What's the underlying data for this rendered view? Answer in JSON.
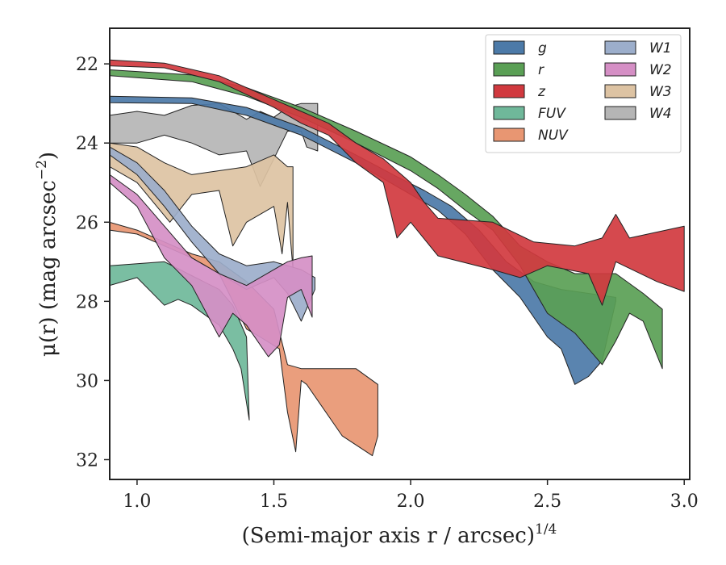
{
  "chart_data": {
    "type": "area",
    "xlabel": "(Semi-major axis r / arcsec)",
    "xlabel_sup": "1/4",
    "ylabel": "μ(r) (mag arcsec",
    "ylabel_sup": "−2",
    "ylabel_end": ")",
    "xlim": [
      0.9,
      3.02
    ],
    "ylim": [
      32.5,
      21.1
    ],
    "y_inverted": true,
    "x_ticks": [
      1.0,
      1.5,
      2.0,
      2.5,
      3.0
    ],
    "x_tick_labels": [
      "1.0",
      "1.5",
      "2.0",
      "2.5",
      "3.0"
    ],
    "y_ticks": [
      22,
      24,
      26,
      28,
      30,
      32
    ],
    "y_tick_labels": [
      "22",
      "24",
      "26",
      "28",
      "30",
      "32"
    ],
    "grid": false,
    "legend_position": "top-right",
    "legend_columns": 2,
    "series": [
      {
        "name": "g",
        "color": "#4c7aa8",
        "upper": [
          [
            0.9,
            22.82
          ],
          [
            1.2,
            22.86
          ],
          [
            1.4,
            23.1
          ],
          [
            1.6,
            23.6
          ],
          [
            1.8,
            24.3
          ],
          [
            1.95,
            24.85
          ],
          [
            2.05,
            25.2
          ],
          [
            2.15,
            25.6
          ],
          [
            2.25,
            26.2
          ],
          [
            2.35,
            27.0
          ],
          [
            2.45,
            27.5
          ],
          [
            2.55,
            27.7
          ],
          [
            2.65,
            27.8
          ],
          [
            2.75,
            27.9
          ]
        ],
        "lower": [
          [
            2.75,
            28.0
          ],
          [
            2.7,
            29.5
          ],
          [
            2.65,
            29.9
          ],
          [
            2.6,
            30.1
          ],
          [
            2.55,
            29.2
          ],
          [
            2.5,
            28.9
          ],
          [
            2.4,
            27.9
          ],
          [
            2.3,
            27.2
          ],
          [
            2.2,
            26.3
          ],
          [
            2.1,
            25.7
          ],
          [
            2.0,
            25.3
          ],
          [
            1.8,
            24.5
          ],
          [
            1.6,
            23.8
          ],
          [
            1.4,
            23.3
          ],
          [
            1.2,
            23.0
          ],
          [
            0.9,
            22.98
          ]
        ]
      },
      {
        "name": "r",
        "color": "#5a9f55",
        "upper": [
          [
            0.9,
            22.15
          ],
          [
            1.2,
            22.28
          ],
          [
            1.4,
            22.6
          ],
          [
            1.6,
            23.1
          ],
          [
            1.8,
            23.7
          ],
          [
            2.0,
            24.35
          ],
          [
            2.1,
            24.8
          ],
          [
            2.2,
            25.3
          ],
          [
            2.3,
            25.85
          ],
          [
            2.4,
            26.6
          ],
          [
            2.5,
            27.0
          ],
          [
            2.6,
            27.3
          ],
          [
            2.75,
            27.3
          ],
          [
            2.85,
            27.8
          ],
          [
            2.92,
            28.2
          ]
        ],
        "lower": [
          [
            2.92,
            29.7
          ],
          [
            2.85,
            28.5
          ],
          [
            2.8,
            28.3
          ],
          [
            2.75,
            29.0
          ],
          [
            2.7,
            29.6
          ],
          [
            2.6,
            28.8
          ],
          [
            2.5,
            28.3
          ],
          [
            2.4,
            27.1
          ],
          [
            2.3,
            26.2
          ],
          [
            2.2,
            25.7
          ],
          [
            2.1,
            25.15
          ],
          [
            2.0,
            24.7
          ],
          [
            1.8,
            24.0
          ],
          [
            1.6,
            23.35
          ],
          [
            1.4,
            22.82
          ],
          [
            1.2,
            22.45
          ],
          [
            0.9,
            22.3
          ]
        ]
      },
      {
        "name": "z",
        "color": "#d1393f",
        "upper": [
          [
            0.9,
            21.9
          ],
          [
            1.1,
            21.98
          ],
          [
            1.3,
            22.3
          ],
          [
            1.5,
            22.9
          ],
          [
            1.6,
            23.2
          ],
          [
            1.7,
            23.5
          ],
          [
            1.8,
            24.0
          ],
          [
            1.9,
            24.4
          ],
          [
            2.0,
            25.0
          ],
          [
            2.05,
            25.5
          ],
          [
            2.1,
            25.9
          ],
          [
            2.3,
            26.0
          ],
          [
            2.45,
            26.5
          ],
          [
            2.6,
            26.6
          ],
          [
            2.7,
            26.4
          ],
          [
            2.75,
            25.8
          ],
          [
            2.8,
            26.4
          ],
          [
            3.0,
            26.1
          ]
        ],
        "lower": [
          [
            3.0,
            27.75
          ],
          [
            2.9,
            27.5
          ],
          [
            2.75,
            27.0
          ],
          [
            2.7,
            28.1
          ],
          [
            2.65,
            27.3
          ],
          [
            2.5,
            27.1
          ],
          [
            2.4,
            27.4
          ],
          [
            2.3,
            27.2
          ],
          [
            2.1,
            26.85
          ],
          [
            2.0,
            26.0
          ],
          [
            1.95,
            26.4
          ],
          [
            1.9,
            25.0
          ],
          [
            1.8,
            24.5
          ],
          [
            1.7,
            23.8
          ],
          [
            1.6,
            23.5
          ],
          [
            1.5,
            23.1
          ],
          [
            1.3,
            22.45
          ],
          [
            1.1,
            22.1
          ],
          [
            0.9,
            22.05
          ]
        ]
      },
      {
        "name": "FUV",
        "color": "#6fb89a",
        "upper": [
          [
            0.9,
            27.1
          ],
          [
            1.0,
            27.05
          ],
          [
            1.1,
            27.0
          ],
          [
            1.2,
            27.35
          ],
          [
            1.3,
            27.7
          ],
          [
            1.35,
            28.1
          ],
          [
            1.4,
            28.9
          ]
        ],
        "lower": [
          [
            1.41,
            31.0
          ],
          [
            1.38,
            29.7
          ],
          [
            1.35,
            29.2
          ],
          [
            1.3,
            28.6
          ],
          [
            1.2,
            28.1
          ],
          [
            1.15,
            27.95
          ],
          [
            1.1,
            28.1
          ],
          [
            1.0,
            27.4
          ],
          [
            0.9,
            27.6
          ]
        ]
      },
      {
        "name": "NUV",
        "color": "#e89672",
        "upper": [
          [
            0.9,
            26.0
          ],
          [
            1.0,
            26.2
          ],
          [
            1.1,
            26.5
          ],
          [
            1.2,
            26.8
          ],
          [
            1.3,
            27.0
          ],
          [
            1.4,
            27.5
          ],
          [
            1.5,
            28.2
          ],
          [
            1.55,
            29.6
          ],
          [
            1.6,
            29.7
          ],
          [
            1.8,
            29.7
          ],
          [
            1.88,
            30.1
          ]
        ],
        "lower": [
          [
            1.88,
            31.4
          ],
          [
            1.86,
            31.9
          ],
          [
            1.75,
            31.4
          ],
          [
            1.62,
            30.1
          ],
          [
            1.6,
            30.0
          ],
          [
            1.58,
            31.8
          ],
          [
            1.55,
            30.8
          ],
          [
            1.52,
            29.2
          ],
          [
            1.45,
            28.9
          ],
          [
            1.4,
            28.7
          ],
          [
            1.3,
            27.3
          ],
          [
            1.2,
            26.9
          ],
          [
            1.1,
            26.6
          ],
          [
            1.0,
            26.3
          ],
          [
            0.9,
            26.2
          ]
        ]
      },
      {
        "name": "W1",
        "color": "#9caecb",
        "upper": [
          [
            0.9,
            24.1
          ],
          [
            1.0,
            24.5
          ],
          [
            1.1,
            25.2
          ],
          [
            1.2,
            26.1
          ],
          [
            1.3,
            26.8
          ],
          [
            1.4,
            27.1
          ],
          [
            1.5,
            27.0
          ],
          [
            1.6,
            27.2
          ],
          [
            1.65,
            27.4
          ]
        ],
        "lower": [
          [
            1.65,
            27.7
          ],
          [
            1.6,
            28.5
          ],
          [
            1.55,
            27.8
          ],
          [
            1.5,
            27.4
          ],
          [
            1.4,
            27.7
          ],
          [
            1.3,
            27.3
          ],
          [
            1.2,
            26.5
          ],
          [
            1.1,
            25.6
          ],
          [
            1.0,
            24.8
          ],
          [
            0.9,
            24.3
          ]
        ]
      },
      {
        "name": "W2",
        "color": "#d58fc5",
        "upper": [
          [
            0.9,
            24.8
          ],
          [
            1.0,
            25.3
          ],
          [
            1.1,
            26.1
          ],
          [
            1.2,
            26.9
          ],
          [
            1.3,
            27.3
          ],
          [
            1.4,
            27.6
          ],
          [
            1.5,
            27.2
          ],
          [
            1.55,
            27.0
          ],
          [
            1.6,
            26.9
          ],
          [
            1.64,
            26.85
          ]
        ],
        "lower": [
          [
            1.64,
            28.4
          ],
          [
            1.6,
            27.7
          ],
          [
            1.55,
            27.9
          ],
          [
            1.52,
            29.1
          ],
          [
            1.48,
            29.4
          ],
          [
            1.4,
            28.6
          ],
          [
            1.35,
            28.3
          ],
          [
            1.3,
            28.9
          ],
          [
            1.2,
            27.6
          ],
          [
            1.1,
            26.9
          ],
          [
            1.0,
            25.6
          ],
          [
            0.9,
            25.0
          ]
        ]
      },
      {
        "name": "W3",
        "color": "#ddc3a3",
        "upper": [
          [
            0.9,
            24.0
          ],
          [
            1.0,
            24.1
          ],
          [
            1.1,
            24.5
          ],
          [
            1.2,
            24.8
          ],
          [
            1.3,
            24.7
          ],
          [
            1.4,
            24.6
          ],
          [
            1.5,
            24.3
          ],
          [
            1.55,
            24.6
          ],
          [
            1.57,
            24.6
          ]
        ],
        "lower": [
          [
            1.57,
            27.2
          ],
          [
            1.55,
            25.5
          ],
          [
            1.53,
            26.8
          ],
          [
            1.5,
            25.6
          ],
          [
            1.4,
            26.0
          ],
          [
            1.35,
            26.6
          ],
          [
            1.3,
            25.2
          ],
          [
            1.2,
            25.3
          ],
          [
            1.12,
            26.0
          ],
          [
            1.0,
            25.0
          ],
          [
            0.9,
            24.6
          ]
        ]
      },
      {
        "name": "W4",
        "color": "#b5b5b5",
        "upper": [
          [
            0.9,
            23.3
          ],
          [
            1.0,
            23.2
          ],
          [
            1.1,
            23.3
          ],
          [
            1.2,
            23.05
          ],
          [
            1.3,
            23.0
          ],
          [
            1.4,
            23.4
          ],
          [
            1.45,
            23.2
          ],
          [
            1.5,
            23.35
          ],
          [
            1.55,
            23.1
          ],
          [
            1.6,
            23.0
          ],
          [
            1.66,
            23.0
          ]
        ],
        "lower": [
          [
            1.66,
            24.2
          ],
          [
            1.62,
            24.1
          ],
          [
            1.6,
            23.7
          ],
          [
            1.55,
            23.7
          ],
          [
            1.5,
            24.4
          ],
          [
            1.45,
            25.1
          ],
          [
            1.4,
            24.2
          ],
          [
            1.3,
            24.3
          ],
          [
            1.2,
            24.0
          ],
          [
            1.1,
            23.8
          ],
          [
            1.0,
            24.0
          ],
          [
            0.9,
            24.0
          ]
        ]
      }
    ]
  }
}
